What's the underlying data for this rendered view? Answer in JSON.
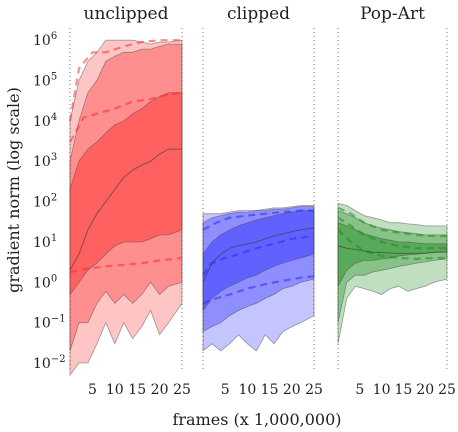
{
  "chart_data": [
    {
      "type": "area",
      "title": "unclipped",
      "color": "#ff2a2a",
      "yscale": "log",
      "ylim": [
        0.006,
        2000000
      ],
      "xlim": [
        0,
        25
      ],
      "x": [
        0,
        2,
        4,
        6,
        8,
        10,
        12,
        14,
        16,
        18,
        20,
        22,
        25
      ],
      "bands": {
        "outer_low": [
          0.005,
          0.01,
          0.01,
          0.03,
          0.1,
          0.03,
          0.1,
          0.04,
          0.08,
          0.2,
          0.05,
          0.1,
          0.3
        ],
        "outer_high": [
          10000,
          100000,
          300000,
          500000,
          1000000,
          1000000,
          1000000,
          1000000,
          900000,
          800000,
          900000,
          900000,
          1000000
        ],
        "mid_low": [
          0.02,
          0.1,
          0.1,
          0.3,
          0.6,
          0.3,
          0.5,
          0.3,
          0.5,
          1,
          0.5,
          0.8,
          1
        ],
        "mid_high": [
          1000,
          10000,
          50000,
          100000,
          300000,
          400000,
          500000,
          500000,
          600000,
          600000,
          700000,
          800000,
          800000
        ],
        "inner_low": [
          0.5,
          1,
          2,
          3,
          5,
          8,
          10,
          10,
          10,
          12,
          15,
          15,
          20
        ],
        "inner_high": [
          200,
          1000,
          2000,
          3000,
          5000,
          8000,
          10000,
          15000,
          20000,
          30000,
          40000,
          50000,
          50000
        ],
        "median": [
          2,
          5,
          20,
          50,
          100,
          200,
          400,
          600,
          800,
          1000,
          1500,
          2000,
          2000
        ]
      },
      "lines": [
        {
          "x": [
            0,
            4,
            8,
            12,
            16,
            20,
            25
          ],
          "y": [
            1.8,
            2.2,
            2.5,
            2.7,
            3,
            3.5,
            4
          ]
        },
        {
          "x": [
            0,
            3,
            6,
            10,
            14,
            18,
            22,
            25
          ],
          "y": [
            3000,
            12000,
            15000,
            20000,
            30000,
            35000,
            45000,
            50000
          ]
        },
        {
          "x": [
            0,
            2,
            5,
            8,
            12,
            16,
            20,
            25
          ],
          "y": [
            10000,
            200000,
            500000,
            500000,
            700000,
            900000,
            1000000,
            1000000
          ]
        }
      ]
    },
    {
      "type": "area",
      "title": "clipped",
      "color": "#2a2aff",
      "yscale": "log",
      "ylim": [
        0.006,
        2000000
      ],
      "xlim": [
        0,
        25
      ],
      "x": [
        0,
        2,
        4,
        6,
        8,
        10,
        12,
        14,
        16,
        18,
        20,
        22,
        25
      ],
      "bands": {
        "outer_low": [
          0.02,
          0.03,
          0.02,
          0.03,
          0.05,
          0.03,
          0.02,
          0.05,
          0.03,
          0.06,
          0.08,
          0.1,
          0.15
        ],
        "outer_high": [
          50,
          50,
          50,
          55,
          60,
          60,
          60,
          65,
          70,
          70,
          75,
          80,
          80
        ],
        "mid_low": [
          0.06,
          0.08,
          0.1,
          0.15,
          0.2,
          0.25,
          0.3,
          0.4,
          0.5,
          0.7,
          0.8,
          1,
          1.2
        ],
        "mid_high": [
          30,
          40,
          45,
          50,
          55,
          55,
          60,
          60,
          65,
          65,
          70,
          75,
          75
        ],
        "inner_low": [
          0.2,
          0.4,
          0.6,
          0.8,
          1,
          1.3,
          1.5,
          2,
          2.5,
          3,
          3.5,
          4,
          5
        ],
        "inner_high": [
          5,
          10,
          15,
          20,
          25,
          30,
          35,
          40,
          45,
          50,
          55,
          60,
          60
        ],
        "median": [
          1,
          3,
          5,
          7,
          8,
          9,
          10,
          12,
          14,
          16,
          18,
          20,
          22
        ]
      },
      "lines": [
        {
          "x": [
            0,
            3,
            6,
            10,
            14,
            18,
            22,
            25
          ],
          "y": [
            0.3,
            0.4,
            0.5,
            0.7,
            0.9,
            1.1,
            1.3,
            1.4
          ]
        },
        {
          "x": [
            0,
            2,
            5,
            8,
            12,
            16,
            20,
            25
          ],
          "y": [
            1.5,
            3,
            4,
            5,
            7,
            9,
            12,
            14
          ]
        },
        {
          "x": [
            0,
            3,
            6,
            10,
            14,
            18,
            22,
            25
          ],
          "y": [
            20,
            30,
            40,
            45,
            50,
            55,
            60,
            60
          ]
        }
      ]
    },
    {
      "type": "area",
      "title": "Pop-Art",
      "color": "#1e8c1e",
      "yscale": "log",
      "ylim": [
        0.006,
        2000000
      ],
      "xlim": [
        0,
        25
      ],
      "x": [
        0,
        2,
        4,
        6,
        8,
        10,
        12,
        14,
        16,
        18,
        20,
        22,
        25
      ],
      "bands": {
        "outer_low": [
          0.03,
          0.4,
          0.8,
          0.7,
          0.6,
          0.5,
          0.7,
          0.8,
          0.6,
          0.7,
          0.8,
          1,
          1.2
        ],
        "outer_high": [
          90,
          80,
          60,
          45,
          40,
          35,
          30,
          30,
          28,
          27,
          25,
          25,
          25
        ],
        "mid_low": [
          0.1,
          1,
          1.5,
          1.5,
          1.8,
          2,
          2.2,
          2.5,
          2.7,
          3,
          3.2,
          3.5,
          3.8
        ],
        "mid_high": [
          60,
          50,
          40,
          30,
          25,
          22,
          20,
          18,
          17,
          16,
          15,
          15,
          15
        ],
        "inner_low": [
          0.8,
          2,
          3,
          3.5,
          3.5,
          3.8,
          4,
          4.5,
          4.8,
          5,
          5.2,
          5.5,
          6
        ],
        "inner_high": [
          30,
          25,
          20,
          16,
          14,
          12,
          11,
          10,
          10,
          9.5,
          9,
          9,
          9
        ],
        "median": [
          8,
          7,
          6.5,
          6,
          5.5,
          5.5,
          5.3,
          5.2,
          5.2,
          5.2,
          5.3,
          5.5,
          5.6
        ]
      },
      "lines": [
        {
          "x": [
            0,
            3,
            6,
            10,
            14,
            18,
            22,
            25
          ],
          "y": [
            20,
            10,
            6,
            4.5,
            4,
            3.8,
            4,
            4
          ]
        },
        {
          "x": [
            0,
            3,
            6,
            10,
            14,
            18,
            22,
            25
          ],
          "y": [
            40,
            25,
            15,
            10,
            8,
            7,
            7,
            7
          ]
        },
        {
          "x": [
            0,
            3,
            6,
            10,
            14,
            18,
            22,
            25
          ],
          "y": [
            70,
            50,
            30,
            20,
            17,
            15,
            14,
            14
          ]
        }
      ]
    }
  ],
  "axes": {
    "xlabel": "frames (x 1,000,000)",
    "ylabel": "gradient norm (log scale)",
    "xticks": [
      5,
      10,
      15,
      20,
      25
    ],
    "ytick_exponents": [
      -2,
      -1,
      0,
      1,
      2,
      3,
      4,
      5,
      6
    ]
  }
}
